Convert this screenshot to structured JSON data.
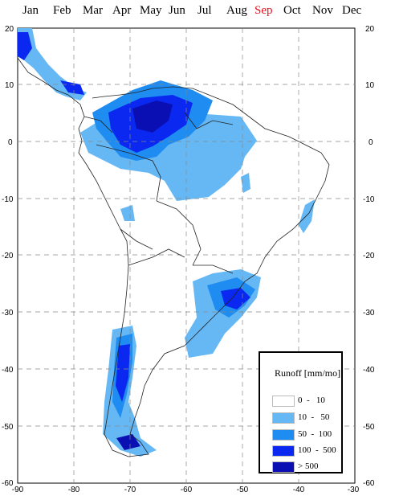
{
  "months": [
    {
      "label": "Jan",
      "active": false
    },
    {
      "label": "Feb",
      "active": false
    },
    {
      "label": "Mar",
      "active": false
    },
    {
      "label": "Apr",
      "active": false
    },
    {
      "label": "May",
      "active": false
    },
    {
      "label": "Jun",
      "active": false
    },
    {
      "label": "Jul",
      "active": false
    },
    {
      "label": "Aug",
      "active": false
    },
    {
      "label": "Sep",
      "active": true
    },
    {
      "label": "Oct",
      "active": false
    },
    {
      "label": "Nov",
      "active": false
    },
    {
      "label": "Dec",
      "active": false
    }
  ],
  "map": {
    "lon_ticks": [
      "-90",
      "-80",
      "-70",
      "-60",
      "-50",
      "-40",
      "-30"
    ],
    "lat_ticks_left": [
      "20",
      "10",
      "0",
      "-10",
      "-20",
      "-30",
      "-40",
      "-50",
      "-60"
    ],
    "lat_ticks_right": [
      "20",
      "10",
      "0",
      "-10",
      "-20",
      "-30",
      "-40",
      "-50",
      "-60"
    ]
  },
  "legend": {
    "title": "Runoff [mm/mo]",
    "items": [
      {
        "label": "0  -   10",
        "color": "#ffffff"
      },
      {
        "label": "10  -   50",
        "color": "#66b8f5"
      },
      {
        "label": "50  -  100",
        "color": "#1e8cf0"
      },
      {
        "label": "100  -  500",
        "color": "#0a28f0"
      },
      {
        "label": "> 500",
        "color": "#0a0fb4"
      }
    ]
  },
  "colors": {
    "grid": "#888888",
    "coast": "#222222",
    "active_month": "#e8101c"
  }
}
